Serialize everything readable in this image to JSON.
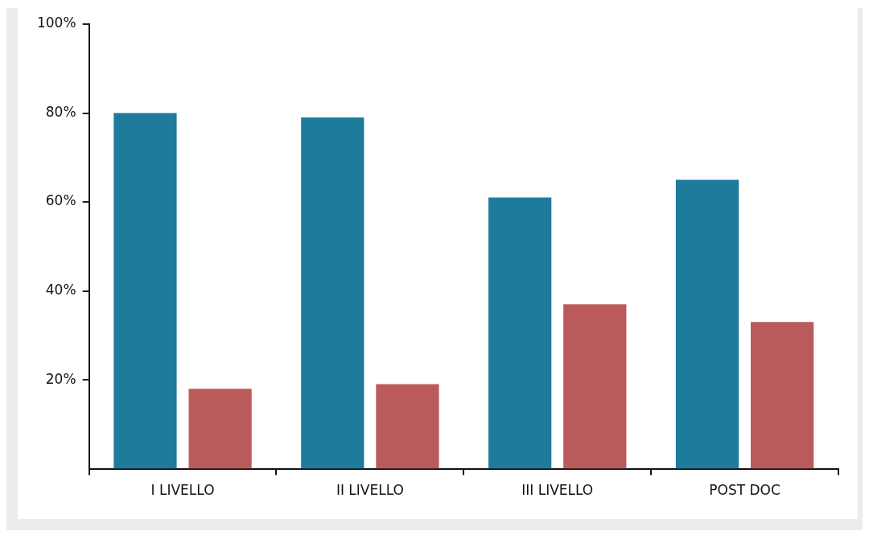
{
  "chart_data": {
    "type": "bar",
    "categories": [
      "I LIVELLO",
      "II LIVELLO",
      "III LIVELLO",
      "POST DOC"
    ],
    "series": [
      {
        "color": "#1e7b9c",
        "values": [
          80,
          79,
          61,
          65
        ]
      },
      {
        "color": "#bb5a5a",
        "values": [
          18,
          19,
          37,
          33
        ]
      }
    ],
    "ylim": [
      0,
      100
    ],
    "yticks": [
      {
        "value": 20,
        "label": "20%"
      },
      {
        "value": 40,
        "label": "40%"
      },
      {
        "value": 60,
        "label": "60%"
      },
      {
        "value": 80,
        "label": "80%"
      },
      {
        "value": 100,
        "label": "100%"
      }
    ],
    "grid": false,
    "legend": false
  }
}
